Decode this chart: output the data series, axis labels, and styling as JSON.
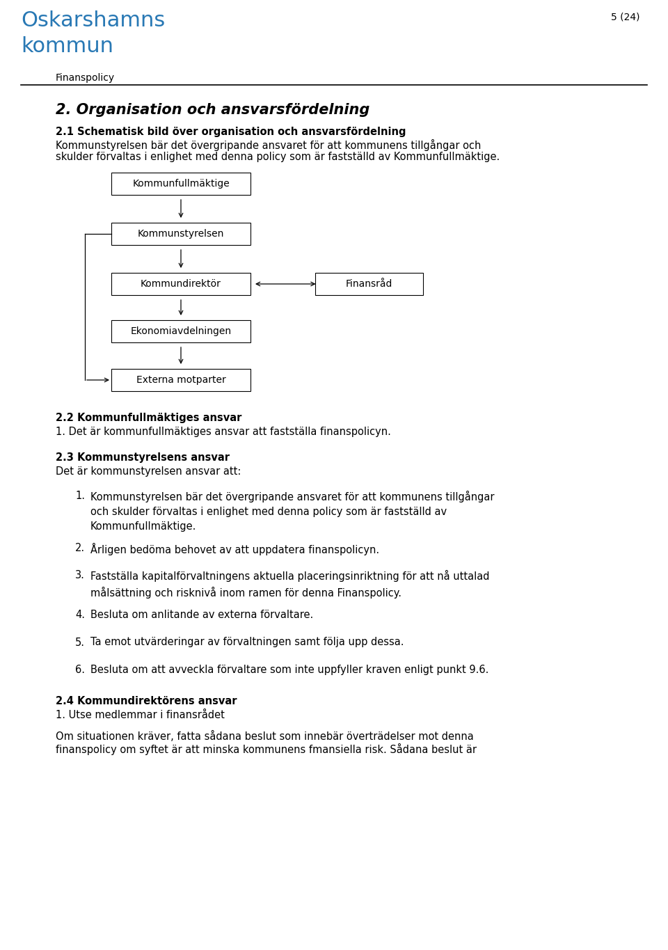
{
  "page_number": "5 (24)",
  "logo_text_line1": "Oskarshamns",
  "logo_text_line2": "kommun",
  "logo_color": "#2878b4",
  "header_label": "Finanspolicy",
  "section2_title": "2. Organisation och ansvarsfördelning",
  "section21_title": "2.1 Schematisk bild över organisation och ansvarsfördelning",
  "section21_body1": "Kommunstyrelsen bär det övergripande ansvaret för att kommunens tillgångar och",
  "section21_body2": "skulder förvaltas i enlighet med denna policy som är fastställd av Kommunfullmäktige.",
  "boxes": [
    "Kommunfullmäktige",
    "Kommunstyrelsen",
    "Kommundirektör",
    "Finansråd",
    "Ekonomiavdelningen",
    "Externa motparter"
  ],
  "section22_title": "2.2 Kommunfullmäktiges ansvar",
  "section22_body": "1. Det är kommunfullmäktiges ansvar att fastställa finanspolicyn.",
  "section23_title": "2.3 Kommunstyrelsens ansvar",
  "section23_intro": "Det är kommunstyrelsen ansvar att:",
  "section23_items": [
    "Kommunstyrelsen bär det övergripande ansvaret för att kommunens tillgångar\noch skulder förvaltas i enlighet med denna policy som är fastställd av\nKommunfullmäktige.",
    "Årligen bedöma behovet av att uppdatera finanspolicyn.",
    "Fastställa kapitalförvaltningens aktuella placeringsinriktning för att nå uttalad\nmålsättning och risknivå inom ramen för denna Finanspolicy.",
    "Besluta om anlitande av externa förvaltare.",
    "Ta emot utvärderingar av förvaltningen samt följa upp dessa.",
    "Besluta om att avveckla förvaltare som inte uppfyller kraven enligt punkt 9.6."
  ],
  "section24_title": "2.4 Kommundirektörens ansvar",
  "section24_item1": "1. Utse medlemmar i finansrådet",
  "section24_body1": "Om situationen kräver, fatta sådana beslut som innebär överträdelser mot denna",
  "section24_body2": "finanspolicy om syftet är att minska kommunens fmansiella risk. Sådana beslut är",
  "bg_color": "#ffffff",
  "text_color": "#000000"
}
